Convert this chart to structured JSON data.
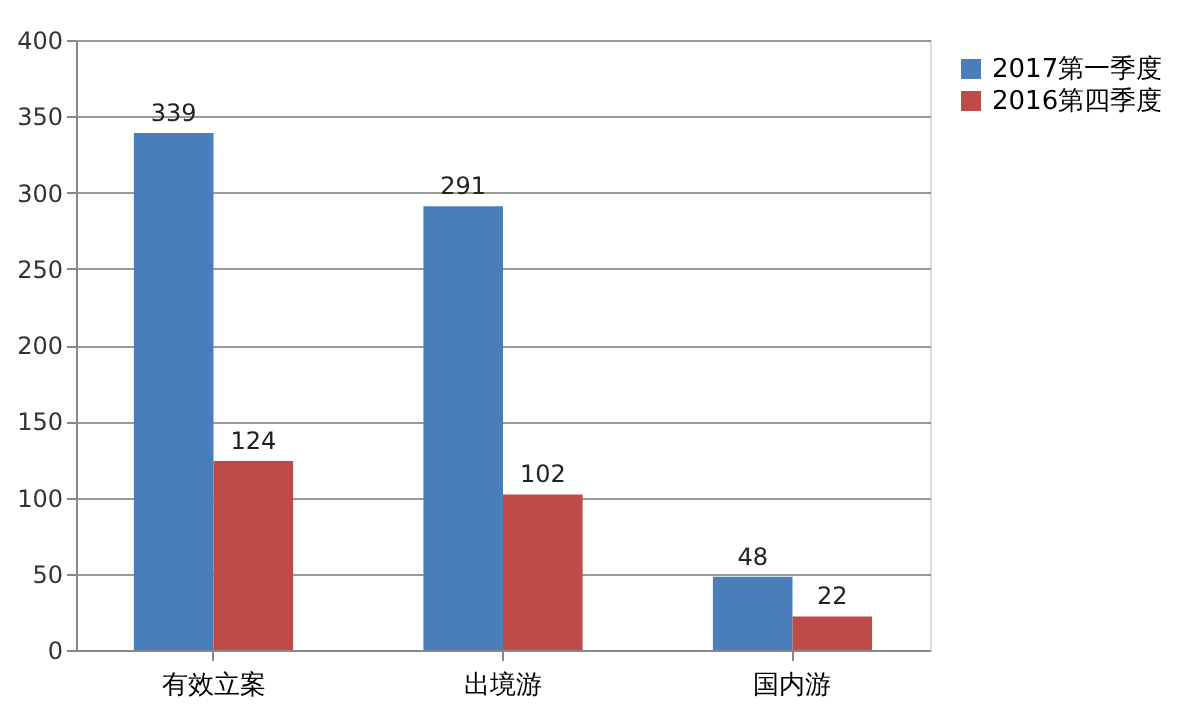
{
  "chart_data": {
    "type": "bar",
    "categories": [
      "有效立案",
      "出境游",
      "国内游"
    ],
    "series": [
      {
        "name": "2017第一季度",
        "color": "#4a7ebb",
        "values": [
          339,
          291,
          48
        ]
      },
      {
        "name": "2016第四季度",
        "color": "#be4b48",
        "values": [
          124,
          102,
          22
        ]
      }
    ],
    "ylim": [
      0,
      400
    ],
    "yticks": [
      0,
      50,
      100,
      150,
      200,
      250,
      300,
      350,
      400
    ],
    "grid": "y",
    "legend": "right",
    "data_labels": true
  }
}
